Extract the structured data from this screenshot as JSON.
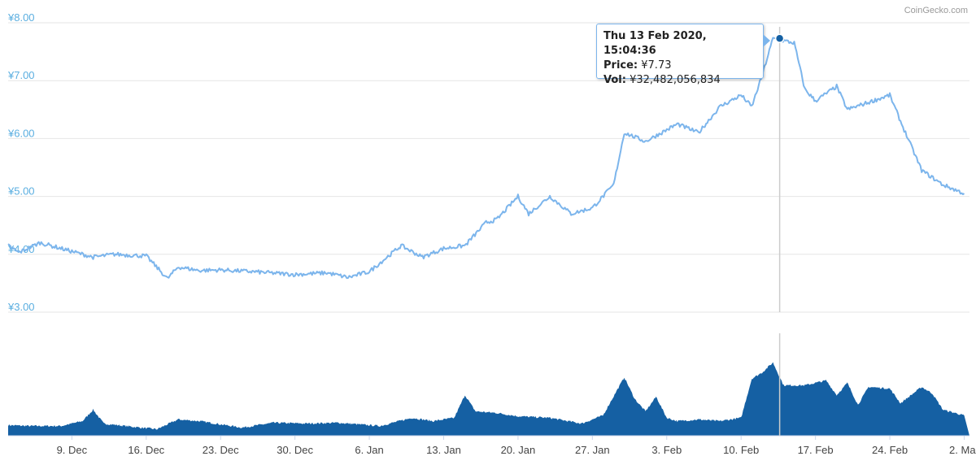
{
  "credit": "CoinGecko.com",
  "tooltip": {
    "date": "Thu 13 Feb 2020, 15:04:36",
    "price_label": "Price:",
    "price_value": "¥7.73",
    "vol_label": "Vol:",
    "vol_value": "¥32,482,056,834"
  },
  "colors": {
    "price_line": "#7cb5ec",
    "volume": "#1560a3",
    "axis_text": "#5aaee0",
    "gridline": "#e6e6e6",
    "crosshair": "#cccccc",
    "marker": "#1560a3"
  },
  "chart_data": [
    {
      "type": "line",
      "ylim": [
        3.0,
        8.0
      ],
      "y_ticks": [
        "¥8.00",
        "¥7.00",
        "¥6.00",
        "¥5.00",
        "¥4.00",
        "¥3.00"
      ],
      "x_ticks": [
        "9. Dec",
        "16. Dec",
        "23. Dec",
        "30. Dec",
        "6. Jan",
        "13. Jan",
        "20. Jan",
        "27. Jan",
        "3. Feb",
        "10. Feb",
        "17. Feb",
        "24. Feb",
        "2. Mar"
      ],
      "grid": true,
      "legend": "none",
      "series": [
        {
          "x": [
            "2019-12-03",
            "2019-12-04",
            "2019-12-06",
            "2019-12-09",
            "2019-12-11",
            "2019-12-13",
            "2019-12-16",
            "2019-12-18",
            "2019-12-19",
            "2019-12-21",
            "2019-12-23",
            "2019-12-26",
            "2019-12-30",
            "2020-01-02",
            "2020-01-04",
            "2020-01-06",
            "2020-01-08",
            "2020-01-09",
            "2020-01-11",
            "2020-01-13",
            "2020-01-15",
            "2020-01-17",
            "2020-01-18",
            "2020-01-20",
            "2020-01-21",
            "2020-01-23",
            "2020-01-25",
            "2020-01-27",
            "2020-01-29",
            "2020-01-30",
            "2020-02-01",
            "2020-02-03",
            "2020-02-04",
            "2020-02-06",
            "2020-02-08",
            "2020-02-10",
            "2020-02-11",
            "2020-02-12",
            "2020-02-13",
            "2020-02-15",
            "2020-02-16",
            "2020-02-17",
            "2020-02-19",
            "2020-02-20",
            "2020-02-24",
            "2020-02-25",
            "2020-02-27",
            "2020-02-29",
            "2020-03-02"
          ],
          "values": [
            4.15,
            4.03,
            4.2,
            4.05,
            3.95,
            4.0,
            3.97,
            3.58,
            3.78,
            3.72,
            3.73,
            3.7,
            3.65,
            3.68,
            3.6,
            3.7,
            4.0,
            4.15,
            3.95,
            4.1,
            4.15,
            4.55,
            4.6,
            5.0,
            4.7,
            5.0,
            4.7,
            4.8,
            5.2,
            6.1,
            5.95,
            6.15,
            6.25,
            6.1,
            6.55,
            6.75,
            6.55,
            7.1,
            7.73,
            7.65,
            6.85,
            6.65,
            6.9,
            6.5,
            6.75,
            6.3,
            5.45,
            5.2,
            5.05
          ]
        }
      ]
    },
    {
      "type": "area",
      "title": "",
      "series": [
        {
          "x": [
            "2019-12-03",
            "2019-12-05",
            "2019-12-08",
            "2019-12-10",
            "2019-12-11",
            "2019-12-12",
            "2019-12-14",
            "2019-12-17",
            "2019-12-19",
            "2019-12-21",
            "2019-12-25",
            "2019-12-28",
            "2019-12-31",
            "2020-01-03",
            "2020-01-07",
            "2020-01-10",
            "2020-01-12",
            "2020-01-14",
            "2020-01-15",
            "2020-01-16",
            "2020-01-18",
            "2020-01-20",
            "2020-01-23",
            "2020-01-26",
            "2020-01-28",
            "2020-01-30",
            "2020-01-31",
            "2020-02-01",
            "2020-02-02",
            "2020-02-03",
            "2020-02-04",
            "2020-02-06",
            "2020-02-08",
            "2020-02-10",
            "2020-02-11",
            "2020-02-12",
            "2020-02-13",
            "2020-02-14",
            "2020-02-16",
            "2020-02-18",
            "2020-02-19",
            "2020-02-20",
            "2020-02-21",
            "2020-02-22",
            "2020-02-24",
            "2020-02-25",
            "2020-02-27",
            "2020-02-28",
            "2020-02-29",
            "2020-03-02"
          ],
          "values": [
            0.13,
            0.12,
            0.12,
            0.18,
            0.32,
            0.15,
            0.12,
            0.08,
            0.2,
            0.18,
            0.1,
            0.16,
            0.15,
            0.16,
            0.12,
            0.22,
            0.18,
            0.22,
            0.5,
            0.3,
            0.28,
            0.24,
            0.22,
            0.15,
            0.25,
            0.72,
            0.45,
            0.3,
            0.48,
            0.22,
            0.18,
            0.2,
            0.18,
            0.22,
            0.7,
            0.78,
            0.9,
            0.62,
            0.62,
            0.68,
            0.5,
            0.65,
            0.38,
            0.6,
            0.58,
            0.4,
            0.6,
            0.52,
            0.32,
            0.25
          ]
        }
      ]
    }
  ]
}
